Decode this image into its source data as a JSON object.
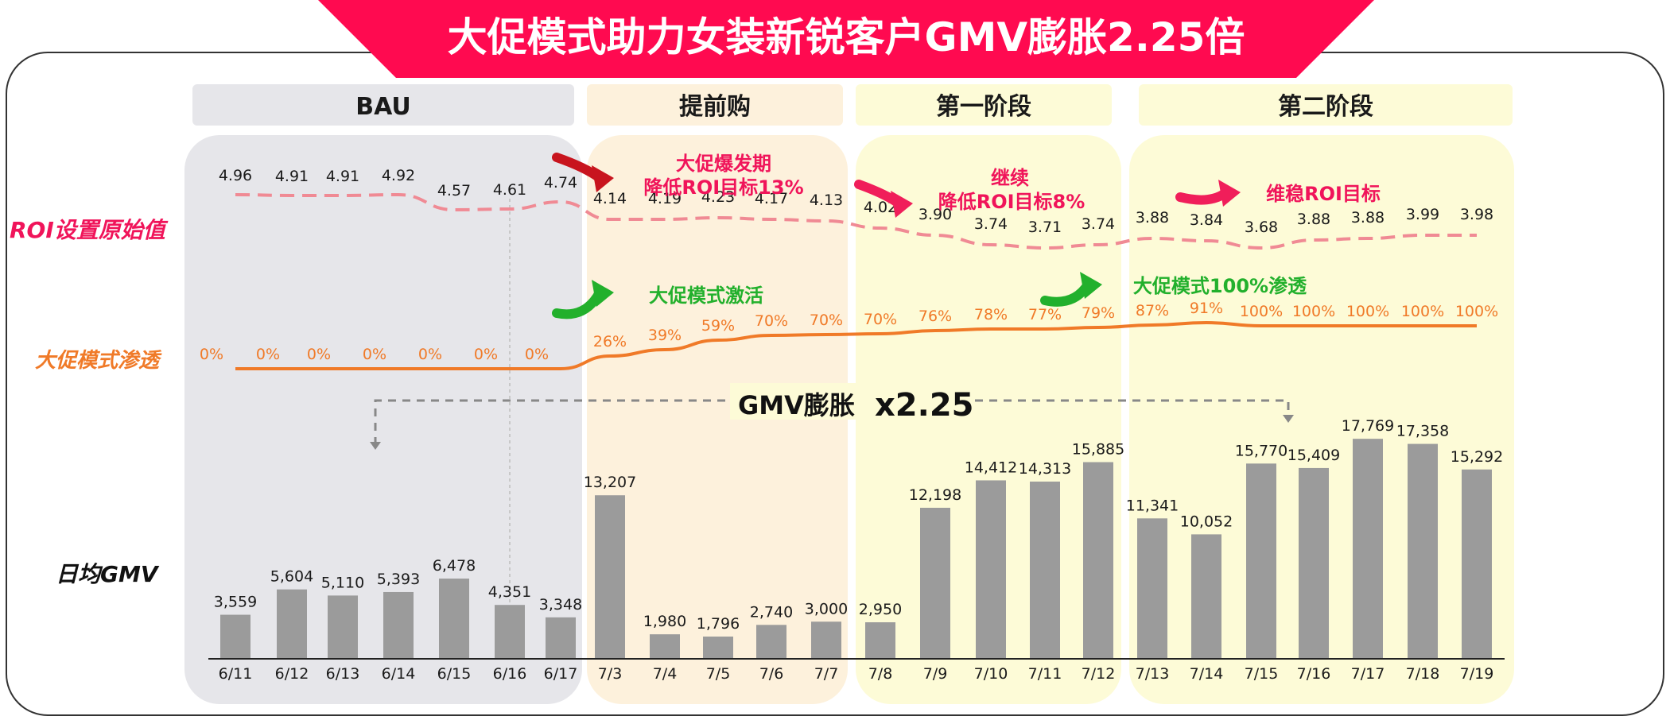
{
  "title": "大促模式助力女装新锐客户GMV膨胀2.25倍",
  "colors": {
    "title_banner": "#ff0a50",
    "roi_line": "#f08a94",
    "roi_label": "#f0145a",
    "penetration_line": "#f07a28",
    "penetration_label": "#f07a28",
    "bar": "#9b9b9b",
    "green": "#22b02c",
    "red_arrow": "#c8141e",
    "pink_arrow": "#f01e5a",
    "phase_bau": "#e6e6ea",
    "phase_pre": "#fdf1dc",
    "phase_stage": "#fdfbd7"
  },
  "row_labels": {
    "roi": "ROI设置原始值",
    "penetration": "大促模式渗透",
    "gmv": "日均GMV"
  },
  "phases": [
    {
      "name": "BAU",
      "start": 0,
      "end": 6
    },
    {
      "name": "提前购",
      "start": 7,
      "end": 11
    },
    {
      "name": "第一阶段",
      "start": 12,
      "end": 16
    },
    {
      "name": "第二阶段",
      "start": 17,
      "end": 23
    }
  ],
  "annotations": {
    "pre_line1": "大促爆发期",
    "pre_line2": "降低ROI目标13%",
    "s1_line1": "继续",
    "s1_line2": "降低ROI目标8%",
    "s2": "维稳ROI目标",
    "activate": "大促模式激活",
    "full": "大促模式100%渗透",
    "gmv_growth_text": "GMV膨胀",
    "gmv_growth_factor": "x2.25"
  },
  "chart_data": {
    "type": "bar",
    "categories": [
      "6/11",
      "6/12",
      "6/13",
      "6/14",
      "6/15",
      "6/16",
      "6/17",
      "7/3",
      "7/4",
      "7/5",
      "7/6",
      "7/7",
      "7/8",
      "7/9",
      "7/10",
      "7/11",
      "7/12",
      "7/13",
      "7/14",
      "7/15",
      "7/16",
      "7/17",
      "7/18",
      "7/19"
    ],
    "series": [
      {
        "name": "日均GMV",
        "type": "bar",
        "values": [
          3559,
          5604,
          5110,
          5393,
          6478,
          4351,
          3348,
          13207,
          1980,
          1796,
          2740,
          3000,
          2950,
          12198,
          14412,
          14313,
          15885,
          11341,
          10052,
          15770,
          15409,
          17769,
          17358,
          15292
        ]
      },
      {
        "name": "ROI设置原始值",
        "type": "line",
        "values": [
          4.96,
          4.91,
          4.91,
          4.92,
          4.57,
          4.61,
          4.74,
          4.14,
          4.19,
          4.23,
          4.17,
          4.13,
          4.02,
          3.9,
          3.74,
          3.71,
          3.74,
          3.88,
          3.84,
          3.68,
          3.88,
          3.88,
          3.99,
          3.98
        ]
      },
      {
        "name": "大促模式渗透",
        "type": "line",
        "values": [
          0,
          0,
          0,
          0,
          0,
          0,
          0,
          26,
          39,
          59,
          70,
          70,
          70,
          76,
          78,
          77,
          79,
          87,
          91,
          100,
          100,
          100,
          100,
          100
        ]
      }
    ],
    "bar_labels": [
      "3,559",
      "5,604",
      "5,110",
      "5,393",
      "6,478",
      "4,351",
      "3,348",
      "13,207",
      "1,980",
      "1,796",
      "2,740",
      "3,000",
      "2,950",
      "12,198",
      "14,412",
      "14,313",
      "15,885",
      "11,341",
      "10,052",
      "15,770",
      "15,409",
      "17,769",
      "17,358",
      "15,292"
    ],
    "roi_labels": [
      "4.96",
      "4.91",
      "4.91",
      "4.92",
      "4.57",
      "4.61",
      "4.74",
      "4.14",
      "4.19",
      "4.23",
      "4.17",
      "4.13",
      "4.02",
      "3.90",
      "3.74",
      "3.71",
      "3.74",
      "3.88",
      "3.84",
      "3.68",
      "3.88",
      "3.88",
      "3.99",
      "3.98"
    ],
    "penetration_labels": [
      "0%",
      "0%",
      "0%",
      "0%",
      "0%",
      "0%",
      "0%",
      "26%",
      "39%",
      "59%",
      "70%",
      "70%",
      "70%",
      "76%",
      "78%",
      "77%",
      "79%",
      "87%",
      "91%",
      "100%",
      "100%",
      "100%",
      "100%",
      "100%"
    ],
    "legend": "none",
    "grid": false
  }
}
